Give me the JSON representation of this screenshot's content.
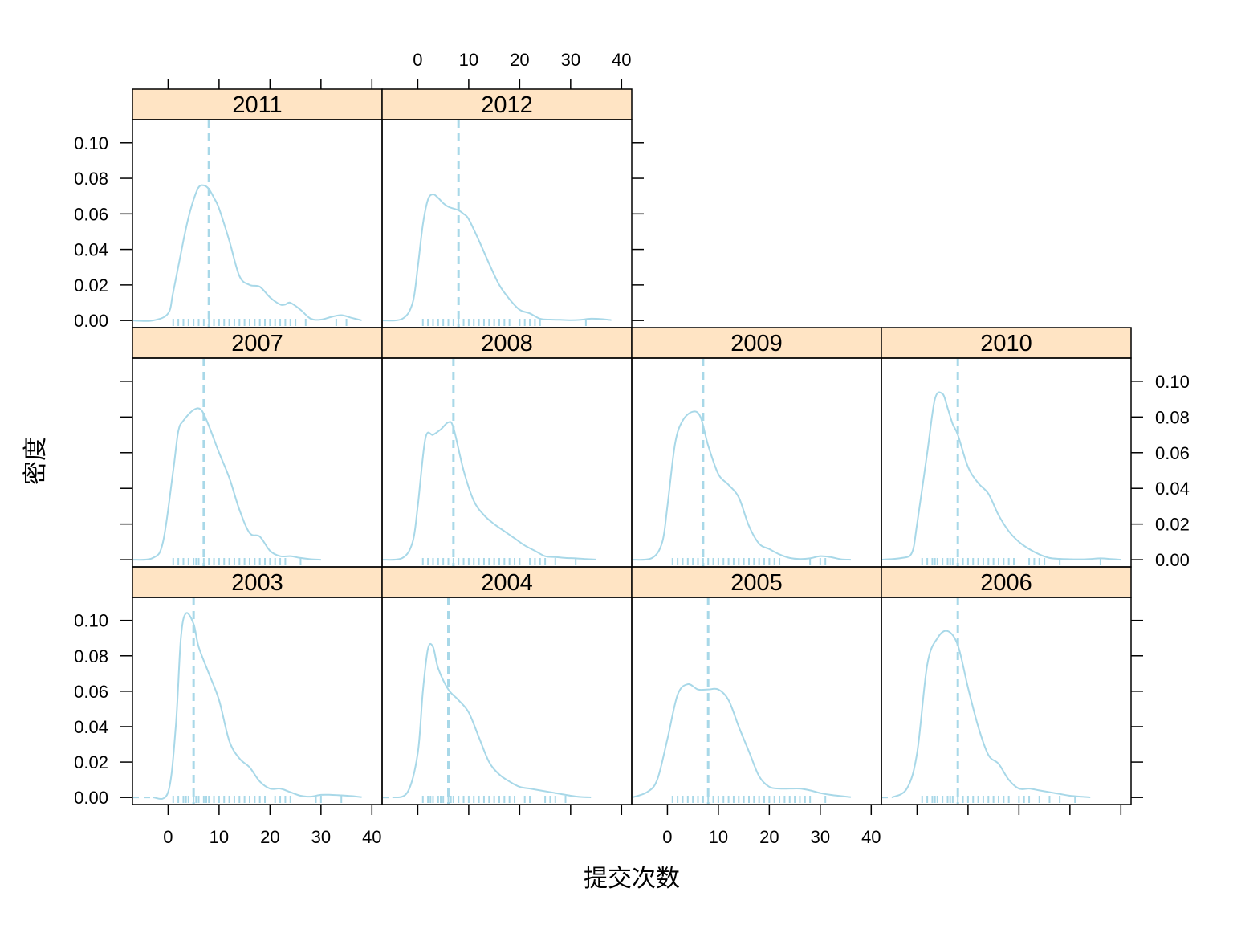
{
  "chart_data": {
    "type": "line",
    "subtype": "density",
    "xlabel": "提交次数",
    "ylabel": "密度",
    "xlim": [
      -7,
      42
    ],
    "ylim": [
      -0.004,
      0.113
    ],
    "x_ticks": [
      0,
      10,
      20,
      30,
      40
    ],
    "y_ticks": [
      0.0,
      0.02,
      0.04,
      0.06,
      0.08,
      0.1
    ],
    "x_tick_labels": [
      "0",
      "10",
      "20",
      "30",
      "40"
    ],
    "y_tick_labels": [
      "0.00",
      "0.02",
      "0.04",
      "0.06",
      "0.08",
      "0.10"
    ],
    "colors": {
      "line": "#a8d8e8",
      "strip_bg": "#ffe4c4",
      "frame": "#000000"
    },
    "grid": false,
    "legend": "none",
    "panels": [
      {
        "name": "2003",
        "median": 5,
        "x": [
          -3,
          0,
          1.5,
          2.5,
          3.5,
          5,
          6,
          8,
          10,
          12,
          14,
          16,
          18,
          20,
          22,
          24,
          26,
          28,
          30,
          32,
          34,
          36,
          38
        ],
        "y": [
          0,
          0.003,
          0.04,
          0.09,
          0.104,
          0.098,
          0.085,
          0.07,
          0.055,
          0.032,
          0.022,
          0.017,
          0.009,
          0.005,
          0.005,
          0.003,
          0.001,
          0.0005,
          0.0015,
          0.0015,
          0.0012,
          0.0008,
          0.0002
        ],
        "rug": [
          1,
          2,
          3,
          3.5,
          4,
          5,
          5.5,
          6,
          7,
          7.5,
          8,
          9,
          10,
          11,
          12,
          13,
          14,
          15,
          16,
          17,
          18,
          19,
          21,
          22,
          23,
          24,
          29,
          30,
          34
        ]
      },
      {
        "name": "2004",
        "median": 6,
        "x": [
          -5,
          -2,
          0,
          1,
          2,
          3,
          4,
          6,
          8,
          10,
          12,
          14,
          16,
          18,
          20,
          22,
          24,
          26,
          28,
          30,
          32,
          34
        ],
        "y": [
          0,
          0.003,
          0.025,
          0.06,
          0.084,
          0.085,
          0.073,
          0.061,
          0.055,
          0.048,
          0.034,
          0.02,
          0.013,
          0.009,
          0.006,
          0.005,
          0.004,
          0.003,
          0.002,
          0.001,
          0.0003,
          0.0001
        ],
        "rug": [
          1,
          2,
          2.5,
          3,
          4,
          4.5,
          5,
          6,
          6.5,
          7,
          8,
          9,
          10,
          11,
          12,
          13,
          14,
          15,
          16,
          17,
          18,
          19,
          21,
          22,
          25,
          26,
          27,
          29
        ]
      },
      {
        "name": "2005",
        "median": 8,
        "x": [
          -7,
          -4,
          -2,
          0,
          2,
          4,
          6,
          8,
          10,
          12,
          14,
          16,
          18,
          20,
          22,
          24,
          26,
          28,
          30,
          32,
          34,
          36
        ],
        "y": [
          0,
          0.003,
          0.01,
          0.033,
          0.058,
          0.064,
          0.061,
          0.061,
          0.061,
          0.055,
          0.04,
          0.026,
          0.012,
          0.006,
          0.005,
          0.005,
          0.005,
          0.004,
          0.0025,
          0.0015,
          0.0008,
          0.0002
        ],
        "rug": [
          1,
          2,
          3,
          4,
          5,
          6,
          7,
          8,
          9,
          10,
          11,
          12,
          13,
          14,
          15,
          16,
          17,
          18,
          19,
          20,
          21,
          22,
          23,
          24,
          25,
          26,
          27,
          28,
          31
        ]
      },
      {
        "name": "2006",
        "median": 8,
        "x": [
          -5,
          -2,
          0,
          2,
          4,
          6,
          8,
          10,
          12,
          14,
          16,
          18,
          20,
          22,
          24,
          26,
          28,
          30,
          32,
          34
        ],
        "y": [
          0,
          0.005,
          0.025,
          0.075,
          0.09,
          0.094,
          0.086,
          0.062,
          0.04,
          0.024,
          0.019,
          0.01,
          0.005,
          0.005,
          0.004,
          0.003,
          0.002,
          0.001,
          0.0005,
          0.0001
        ],
        "rug": [
          1,
          2,
          3,
          3.5,
          4,
          5,
          6,
          6.5,
          7,
          8,
          9,
          10,
          11,
          12,
          13,
          14,
          15,
          16,
          17,
          18,
          20,
          21,
          22,
          24,
          26,
          28,
          31
        ]
      },
      {
        "name": "2007",
        "median": 7,
        "x": [
          -7,
          -3,
          -1,
          1,
          2,
          3,
          5,
          6.5,
          8,
          10,
          12,
          14,
          16,
          18,
          20,
          22,
          24,
          26,
          28,
          30
        ],
        "y": [
          0,
          0.001,
          0.01,
          0.05,
          0.072,
          0.078,
          0.084,
          0.084,
          0.075,
          0.06,
          0.046,
          0.028,
          0.015,
          0.013,
          0.005,
          0.002,
          0.002,
          0.001,
          0.0003,
          0
        ],
        "rug": [
          1,
          2,
          3,
          4,
          5,
          5.5,
          6,
          7,
          8,
          9,
          10,
          11,
          12,
          13,
          14,
          15,
          16,
          17,
          18,
          19,
          20,
          21,
          22,
          23,
          26
        ]
      },
      {
        "name": "2008",
        "median": 7,
        "x": [
          -7,
          -3,
          -1,
          0,
          1.5,
          3,
          4.5,
          6,
          7,
          9,
          11,
          13,
          15,
          17,
          19,
          21,
          23,
          25,
          27,
          29,
          31,
          33,
          35
        ],
        "y": [
          0,
          0.001,
          0.01,
          0.03,
          0.068,
          0.07,
          0.073,
          0.077,
          0.074,
          0.05,
          0.033,
          0.025,
          0.02,
          0.016,
          0.012,
          0.008,
          0.005,
          0.002,
          0.0015,
          0.001,
          0.0008,
          0.0004,
          0.0001
        ],
        "rug": [
          1,
          2,
          3,
          4,
          5,
          6,
          7,
          8,
          9,
          10,
          11,
          12,
          13,
          14,
          15,
          16,
          17,
          18,
          19,
          20,
          22,
          23,
          24,
          25,
          27,
          31
        ]
      },
      {
        "name": "2009",
        "median": 7,
        "x": [
          -7,
          -3,
          -1,
          0,
          1.5,
          3,
          5,
          6.5,
          8,
          10,
          12,
          14,
          16,
          18,
          20,
          22,
          24,
          26,
          28,
          30,
          32,
          34,
          36
        ],
        "y": [
          0,
          0.001,
          0.01,
          0.03,
          0.065,
          0.078,
          0.083,
          0.08,
          0.064,
          0.048,
          0.042,
          0.035,
          0.019,
          0.009,
          0.006,
          0.003,
          0.001,
          0.0004,
          0.0008,
          0.002,
          0.0015,
          0.0003,
          0
        ],
        "rug": [
          1,
          2,
          3,
          4,
          5,
          6,
          7,
          8,
          9,
          10,
          11,
          12,
          13,
          14,
          15,
          16,
          17,
          18,
          19,
          20,
          21,
          22,
          28,
          30,
          31
        ]
      },
      {
        "name": "2010",
        "median": 8,
        "x": [
          -7,
          -3,
          -1,
          0,
          2,
          3.5,
          5,
          6,
          7,
          8,
          10,
          12,
          14,
          16,
          18,
          20,
          22,
          24,
          26,
          28,
          30,
          32,
          34,
          36,
          38,
          40
        ],
        "y": [
          0,
          0.001,
          0.004,
          0.02,
          0.06,
          0.09,
          0.093,
          0.085,
          0.076,
          0.07,
          0.052,
          0.043,
          0.037,
          0.025,
          0.016,
          0.01,
          0.006,
          0.003,
          0.001,
          0.0005,
          0.0003,
          0.0002,
          0.0004,
          0.0008,
          0.0004,
          0
        ],
        "rug": [
          1,
          2,
          3,
          3.5,
          4,
          5,
          6,
          6.5,
          7,
          8,
          9,
          10,
          11,
          12,
          13,
          14,
          15,
          16,
          17,
          18,
          19,
          22,
          23,
          24,
          25,
          28,
          36
        ]
      },
      {
        "name": "2011",
        "median": 8,
        "x": [
          -7,
          -3,
          0,
          1,
          3,
          4,
          5,
          6,
          7,
          8,
          9,
          10,
          12,
          14,
          16,
          18,
          20,
          22,
          23,
          24,
          26,
          28,
          30,
          32,
          34,
          36,
          38
        ],
        "y": [
          0,
          0,
          0.004,
          0.016,
          0.045,
          0.058,
          0.068,
          0.075,
          0.076,
          0.074,
          0.069,
          0.063,
          0.045,
          0.025,
          0.02,
          0.019,
          0.013,
          0.009,
          0.009,
          0.01,
          0.006,
          0.001,
          0.0005,
          0.002,
          0.003,
          0.0015,
          0.0001
        ],
        "rug": [
          1,
          2,
          3,
          4,
          5,
          6,
          7,
          8,
          9,
          10,
          11,
          12,
          13,
          14,
          15,
          16,
          17,
          18,
          19,
          20,
          21,
          22,
          23,
          24,
          25,
          27,
          33,
          35
        ]
      },
      {
        "name": "2012",
        "median": 8,
        "x": [
          -7,
          -3,
          -1,
          0,
          1,
          2,
          3,
          4,
          5,
          6,
          7,
          8,
          9,
          10,
          12,
          14,
          16,
          18,
          20,
          22,
          24,
          26,
          28,
          30,
          32,
          34,
          36,
          38
        ],
        "y": [
          0,
          0.001,
          0.01,
          0.03,
          0.054,
          0.068,
          0.071,
          0.069,
          0.066,
          0.064,
          0.063,
          0.062,
          0.06,
          0.057,
          0.045,
          0.032,
          0.02,
          0.012,
          0.006,
          0.004,
          0.001,
          0.0005,
          0.0004,
          0.0002,
          0.0004,
          0.001,
          0.0008,
          0.0002
        ],
        "rug": [
          1,
          2,
          3,
          4,
          5,
          6,
          7,
          8,
          9,
          10,
          11,
          12,
          13,
          14,
          15,
          16,
          17,
          18,
          20,
          21,
          22,
          23,
          24,
          33
        ]
      }
    ]
  }
}
